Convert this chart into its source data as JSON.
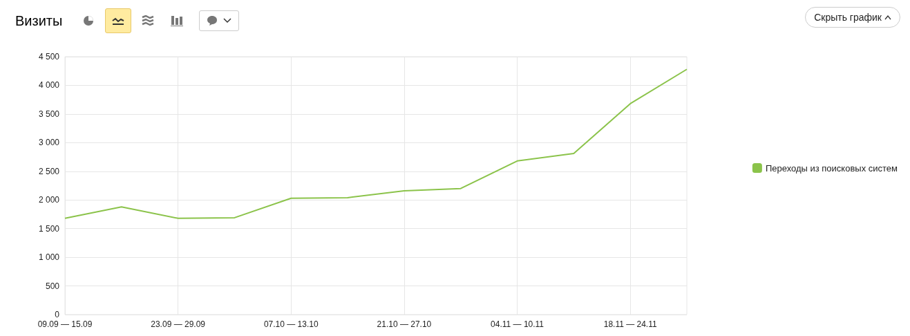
{
  "chart_data": {
    "type": "line",
    "title": "Визиты",
    "annotations": [
      "Скрыть график"
    ],
    "categories": [
      "09.09 — 15.09",
      null,
      "23.09 — 29.09",
      null,
      "07.10 — 13.10",
      null,
      "21.10 — 27.10",
      null,
      "04.11 — 10.11",
      null,
      "18.11 — 24.11",
      null
    ],
    "series": [
      {
        "name": "Переходы из поисковых систем",
        "color": "#8bc34a",
        "values": [
          1680,
          1880,
          1680,
          1690,
          2030,
          2040,
          2160,
          2200,
          2680,
          2810,
          3680,
          4280
        ]
      }
    ],
    "ylim": [
      0,
      4500
    ],
    "yticks": [
      0,
      500,
      {
        "value": 1000,
        "label": "1 000"
      },
      {
        "value": 1500,
        "label": "1 500"
      },
      {
        "value": 2000,
        "label": "2 000"
      },
      {
        "value": 2500,
        "label": "2 500"
      },
      {
        "value": 3000,
        "label": "3 000"
      },
      {
        "value": 3500,
        "label": "3 500"
      },
      {
        "value": 4000,
        "label": "4 000"
      },
      {
        "value": 4500,
        "label": "4 500"
      }
    ],
    "grid": true,
    "legend": "right",
    "marker": "none",
    "line_style": "solid"
  }
}
